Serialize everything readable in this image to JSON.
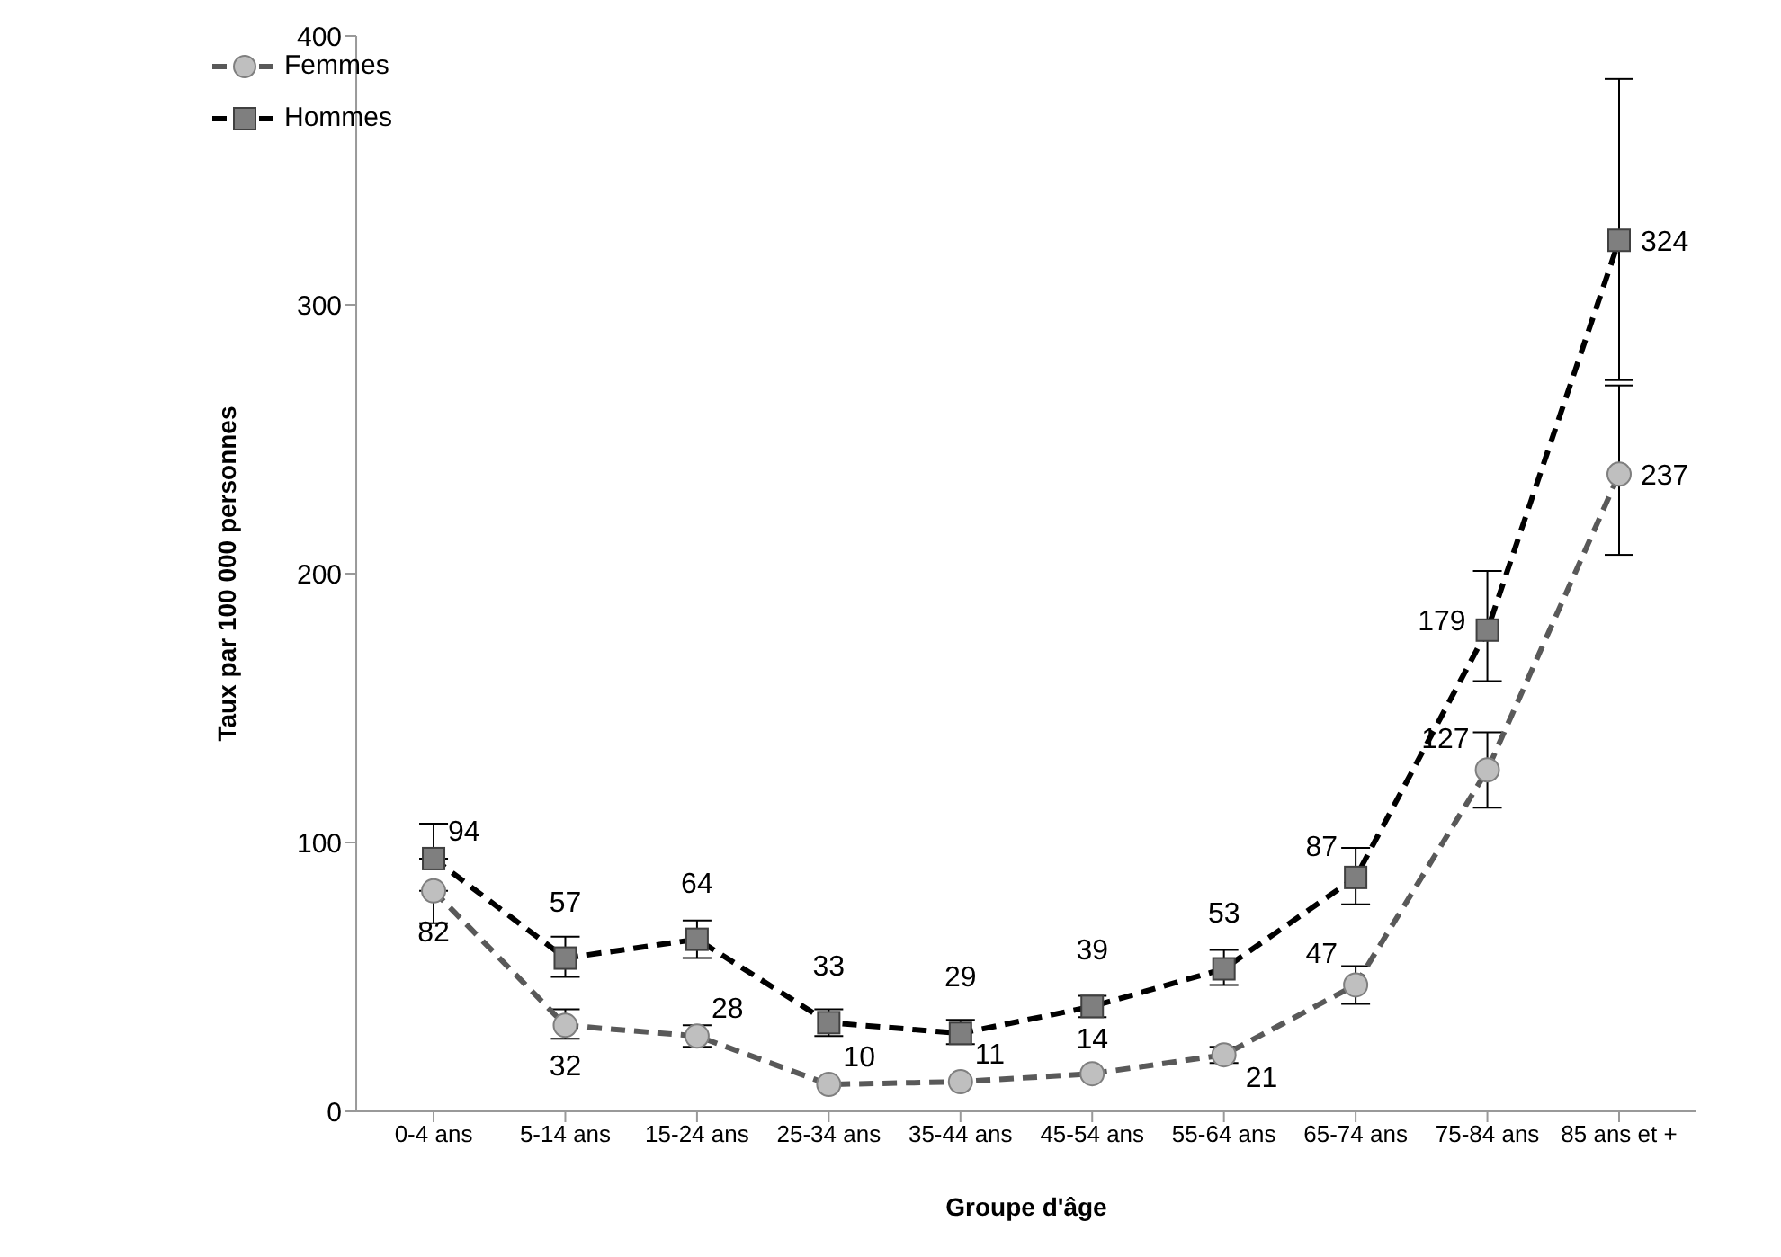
{
  "chart_data": {
    "type": "line",
    "xlabel": "Groupe d'âge",
    "ylabel": "Taux par 100 000 personnes",
    "categories": [
      "0-4 ans",
      "5-14 ans",
      "15-24 ans",
      "25-34 ans",
      "35-44 ans",
      "45-54 ans",
      "55-64 ans",
      "65-74 ans",
      "75-84 ans",
      "85 ans et +"
    ],
    "series": [
      {
        "name": "Femmes",
        "color": "#595959",
        "marker": "circle",
        "values": [
          82,
          32,
          28,
          10,
          11,
          14,
          21,
          47,
          127,
          237
        ],
        "errors": [
          [
            70,
            82
          ],
          [
            27,
            38
          ],
          [
            24,
            32
          ],
          null,
          null,
          null,
          [
            18,
            24
          ],
          [
            40,
            54
          ],
          [
            113,
            141
          ],
          [
            207,
            270
          ]
        ]
      },
      {
        "name": "Hommes",
        "color": "#000000",
        "marker": "square",
        "values": [
          94,
          57,
          64,
          33,
          29,
          39,
          53,
          87,
          179,
          324
        ],
        "errors": [
          [
            94,
            107
          ],
          [
            50,
            65
          ],
          [
            57,
            71
          ],
          [
            28,
            38
          ],
          [
            25,
            34
          ],
          [
            35,
            43
          ],
          [
            47,
            60
          ],
          [
            77,
            98
          ],
          [
            160,
            201
          ],
          [
            272,
            384
          ]
        ]
      }
    ],
    "ylim": [
      0,
      400
    ],
    "yticks": [
      0,
      100,
      200,
      300,
      400
    ],
    "grid": false,
    "legend": "top left",
    "line_style": "dashed",
    "data_labels": true
  }
}
